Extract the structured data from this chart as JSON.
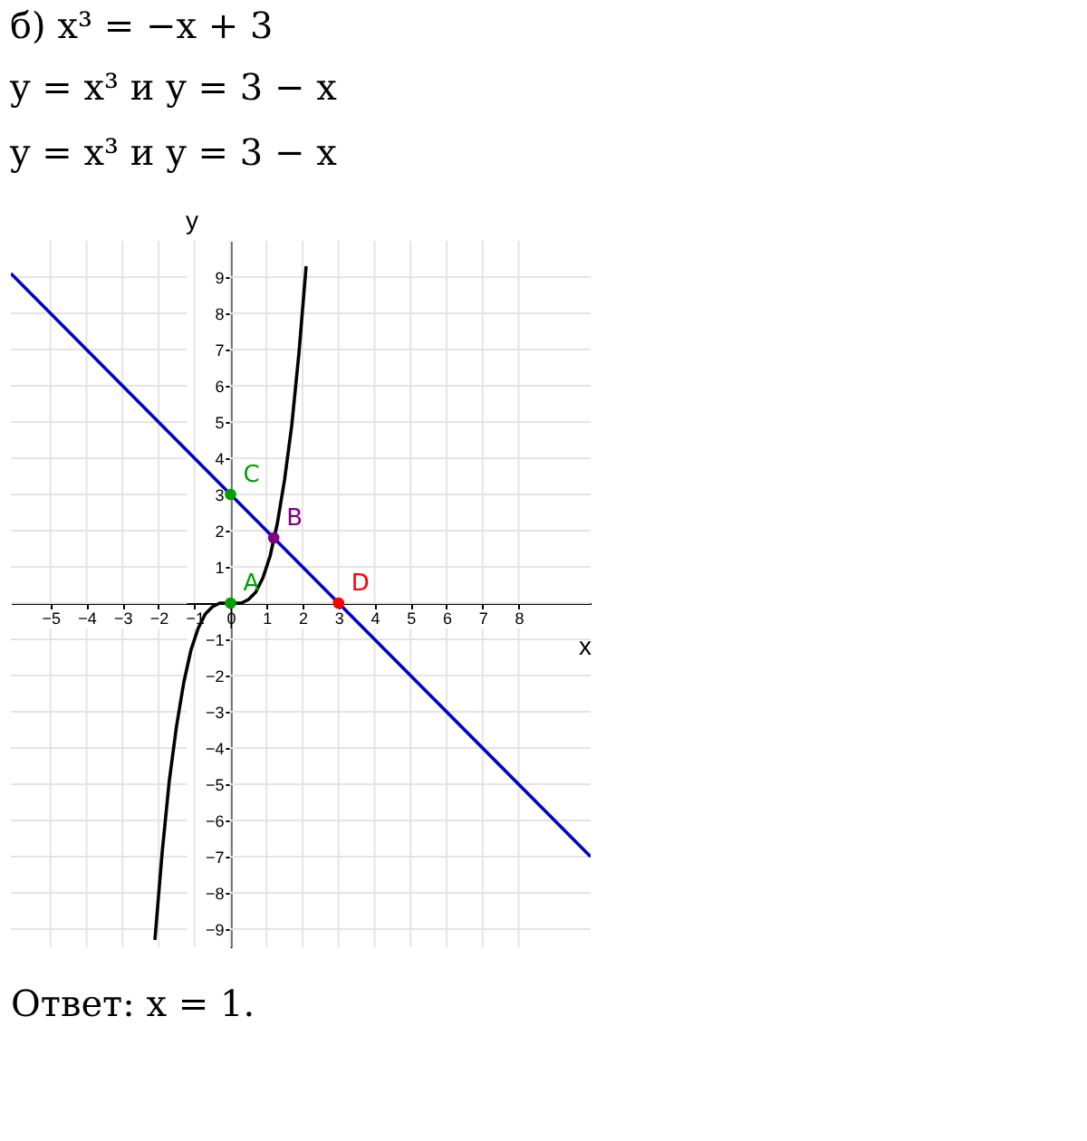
{
  "chart_data": {
    "type": "line",
    "title": "б) x³ = −x + 3",
    "subtitle": [
      "y = x³      и      y = 3 − x",
      "y = x³      и      y = 3 − x"
    ],
    "xlabel": "x",
    "ylabel": "y",
    "xlim": [
      -6.1,
      10
    ],
    "ylim": [
      -9.5,
      10
    ],
    "xticks": [
      -5,
      -4,
      -3,
      -2,
      -1,
      0,
      1,
      2,
      3,
      4,
      5,
      6,
      7,
      8
    ],
    "yticks": [
      -9,
      -8,
      -7,
      -6,
      -5,
      -4,
      -3,
      -2,
      -1,
      {
        "value": 0,
        "label": null
      },
      1,
      2,
      3,
      4,
      5,
      6,
      7,
      8,
      9
    ],
    "grid": true,
    "series": [
      {
        "color": "#000000",
        "x": [
          -2.1,
          -1.9,
          -1.7,
          -1.5,
          -1.3,
          -1.1,
          -0.9,
          -0.7,
          -0.5,
          -0.3,
          0,
          0.3,
          0.5,
          0.7,
          0.9,
          1.1,
          1.3,
          1.5,
          1.7,
          1.9,
          2.1
        ],
        "values": [
          -9.3,
          -6.9,
          -4.9,
          -3.4,
          -2.2,
          -1.3,
          -0.7,
          -0.3,
          -0.1,
          0,
          0,
          0,
          0.1,
          0.3,
          0.7,
          1.3,
          2.2,
          3.4,
          4.9,
          6.9,
          9.3
        ]
      },
      {
        "color": "#0000cc",
        "x": [
          -6.1,
          10
        ],
        "values": [
          9.1,
          -7
        ]
      },
      {
        "type": "scatter",
        "name": "A",
        "color": "#00a000",
        "x": [
          0
        ],
        "values": [
          0
        ]
      },
      {
        "type": "scatter",
        "name": "B",
        "color": "#800080",
        "x": [
          1.2
        ],
        "values": [
          1.8
        ]
      },
      {
        "type": "scatter",
        "name": "C",
        "color": "#00a000",
        "x": [
          0
        ],
        "values": [
          3
        ]
      },
      {
        "type": "scatter",
        "name": "D",
        "color": "#ff0000",
        "x": [
          3
        ],
        "values": [
          0
        ]
      }
    ],
    "annotations": [
      "Ответ: x = 1."
    ]
  }
}
